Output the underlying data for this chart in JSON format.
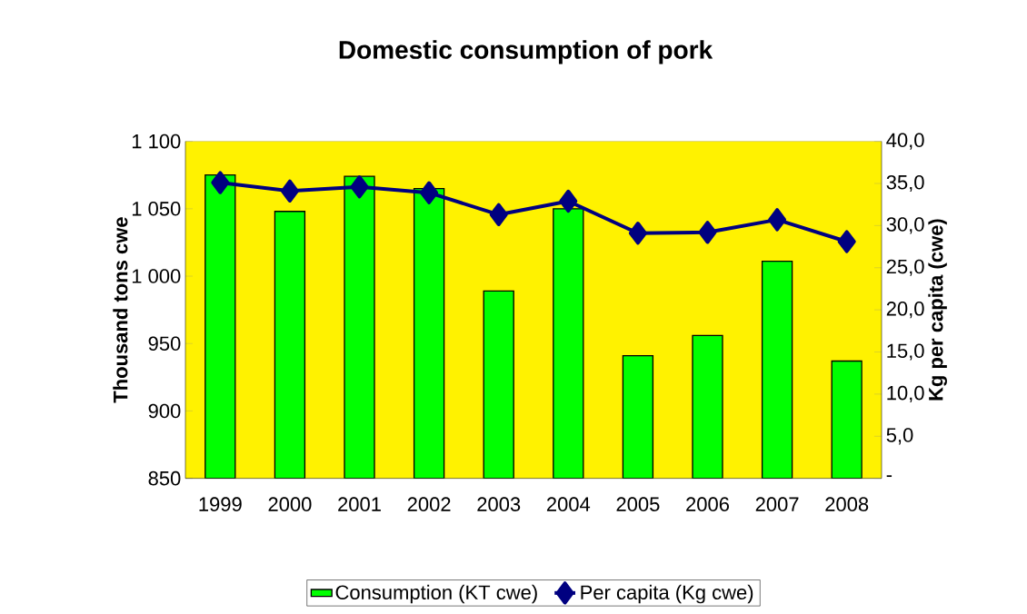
{
  "chart_data": {
    "type": "bar",
    "title": "Domestic consumption of pork",
    "ylabel": "Thousand tons cwe",
    "y2label": "Kg per capita (cwe)",
    "categories": [
      "1999",
      "2000",
      "2001",
      "2002",
      "2003",
      "2004",
      "2005",
      "2006",
      "2007",
      "2008"
    ],
    "series": [
      {
        "name": "Consumption (KT cwe)",
        "color": "#00ff00",
        "values": [
          1075,
          1048,
          1074,
          1065,
          989,
          1050,
          941,
          956,
          1011,
          937
        ]
      },
      {
        "name": "Per capita (Kg cwe)",
        "color": "#000080",
        "type": "line",
        "axis": "y2",
        "values": [
          35.1,
          34.1,
          34.6,
          33.9,
          31.3,
          32.9,
          29.1,
          29.2,
          30.7,
          28.1
        ]
      }
    ],
    "ylim": [
      850,
      1100
    ],
    "yticks": [
      {
        "value": 850,
        "label": "850"
      },
      {
        "value": 900,
        "label": "900"
      },
      {
        "value": 950,
        "label": "950"
      },
      {
        "value": 1000,
        "label": "1 000"
      },
      {
        "value": 1050,
        "label": "1 050"
      },
      {
        "value": 1100,
        "label": "1 100"
      }
    ],
    "y2lim": [
      0,
      40
    ],
    "y2ticks": [
      {
        "value": 0,
        "label": "-"
      },
      {
        "value": 5,
        "label": "5,0"
      },
      {
        "value": 10,
        "label": "10,0"
      },
      {
        "value": 15,
        "label": "15,0"
      },
      {
        "value": 20,
        "label": "20,0"
      },
      {
        "value": 25,
        "label": "25,0"
      },
      {
        "value": 30,
        "label": "30,0"
      },
      {
        "value": 35,
        "label": "35,0"
      },
      {
        "value": 40,
        "label": "40,0"
      }
    ],
    "marker": "diamond",
    "legend": "bottom"
  }
}
